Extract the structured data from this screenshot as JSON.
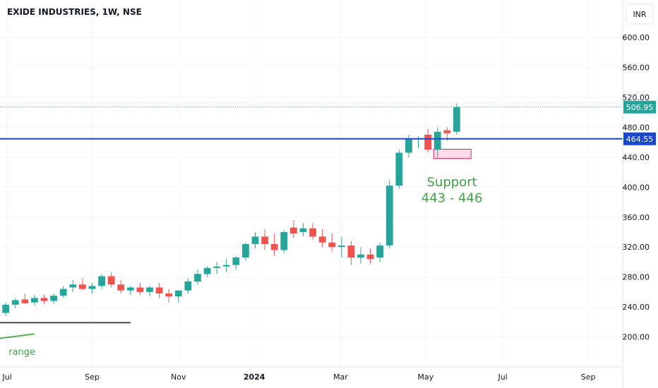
{
  "chart_data": {
    "type": "candlestick",
    "title": "EXIDE INDUSTRIES, 1W, NSE",
    "currency": "INR",
    "x": [
      0,
      1,
      2,
      3,
      4,
      5,
      6,
      7,
      8,
      9,
      10,
      11,
      12,
      13,
      14,
      15,
      16,
      17,
      18,
      19,
      20,
      21,
      22,
      23,
      24,
      25,
      26,
      27,
      28,
      29,
      30,
      31,
      32,
      33,
      34,
      35,
      36,
      37,
      38,
      39,
      40,
      41,
      42,
      43,
      44,
      45,
      46,
      47
    ],
    "open": [
      232,
      243,
      250,
      246,
      252,
      248,
      255,
      266,
      270,
      264,
      268,
      281,
      270,
      262,
      266,
      260,
      266,
      258,
      254,
      262,
      274,
      284,
      292,
      294,
      296,
      306,
      324,
      334,
      324,
      316,
      346,
      340,
      345,
      334,
      326,
      320,
      322,
      306,
      310,
      306,
      322,
      402,
      446,
      464,
      470,
      450,
      476,
      474
    ],
    "high": [
      246,
      252,
      258,
      256,
      256,
      258,
      268,
      276,
      278,
      272,
      284,
      286,
      276,
      268,
      272,
      268,
      272,
      264,
      262,
      278,
      290,
      294,
      300,
      304,
      308,
      326,
      340,
      344,
      338,
      342,
      356,
      352,
      352,
      344,
      338,
      334,
      328,
      320,
      318,
      326,
      410,
      450,
      470,
      468,
      478,
      480,
      480,
      512
    ],
    "low": [
      228,
      238,
      244,
      242,
      244,
      244,
      252,
      260,
      262,
      258,
      264,
      266,
      258,
      256,
      256,
      254,
      252,
      246,
      246,
      258,
      270,
      280,
      284,
      286,
      290,
      302,
      318,
      316,
      308,
      312,
      332,
      334,
      330,
      320,
      314,
      306,
      296,
      298,
      298,
      300,
      318,
      398,
      440,
      452,
      446,
      440,
      462,
      470
    ],
    "close": [
      243,
      249,
      245,
      252,
      248,
      255,
      264,
      270,
      264,
      268,
      281,
      270,
      262,
      266,
      260,
      266,
      258,
      254,
      262,
      274,
      284,
      292,
      294,
      296,
      306,
      324,
      334,
      324,
      316,
      340,
      338,
      345,
      334,
      326,
      320,
      322,
      306,
      310,
      304,
      322,
      402,
      446,
      464,
      465,
      450,
      474,
      472,
      507
    ],
    "up_color": "#26a69a",
    "down_color": "#ef5350",
    "xlim": [
      -0.6,
      64.3
    ],
    "xticks": [
      {
        "value": 0.15,
        "label": "Jul"
      },
      {
        "value": 9,
        "label": "Sep"
      },
      {
        "value": 18,
        "label": "Nov"
      },
      {
        "value": 25.9,
        "label": "2024"
      },
      {
        "value": 34.9,
        "label": "Mar"
      },
      {
        "value": 43.75,
        "label": "May"
      },
      {
        "value": 51.8,
        "label": "Jul"
      },
      {
        "value": 60.7,
        "label": "Sep"
      }
    ],
    "ylim": [
      160,
      650
    ],
    "yticks": [
      {
        "value": 200,
        "label": "200.00"
      },
      {
        "value": 240,
        "label": "240.00"
      },
      {
        "value": 280,
        "label": "280.00"
      },
      {
        "value": 320,
        "label": "320.00"
      },
      {
        "value": 360,
        "label": "360.00"
      },
      {
        "value": 400,
        "label": "400.00"
      },
      {
        "value": 440,
        "label": "440.00"
      },
      {
        "value": 480,
        "label": "480.00"
      },
      {
        "value": 520,
        "label": "520.00"
      },
      {
        "value": 560,
        "label": "560.00"
      },
      {
        "value": 600,
        "label": "600.00"
      }
    ],
    "last_price": {
      "value": 506.95,
      "label": "506.95",
      "color": "#26a69a"
    },
    "hlines": [
      {
        "value": 464.55,
        "label": "464.55",
        "color": "#1848cc"
      }
    ],
    "zone": {
      "low": 443,
      "high": 446,
      "x": [
        44.6,
        48.5
      ],
      "color": "#e91e63"
    },
    "annotations": [
      {
        "text": "Support",
        "x": 46.5,
        "y": 401,
        "color": "#43a047"
      },
      {
        "text": "443 - 446",
        "x": 46.5,
        "y": 380,
        "color": "#43a047"
      },
      {
        "text": "range",
        "x": 0.3,
        "y": 176,
        "color": "#43a047"
      }
    ],
    "trendlines": [
      {
        "x": [
          -0.6,
          13
        ],
        "y": [
          219,
          219
        ],
        "color": "#444"
      },
      {
        "x": [
          -0.6,
          3
        ],
        "y": [
          198,
          204
        ],
        "color": "#4caf50"
      }
    ]
  }
}
